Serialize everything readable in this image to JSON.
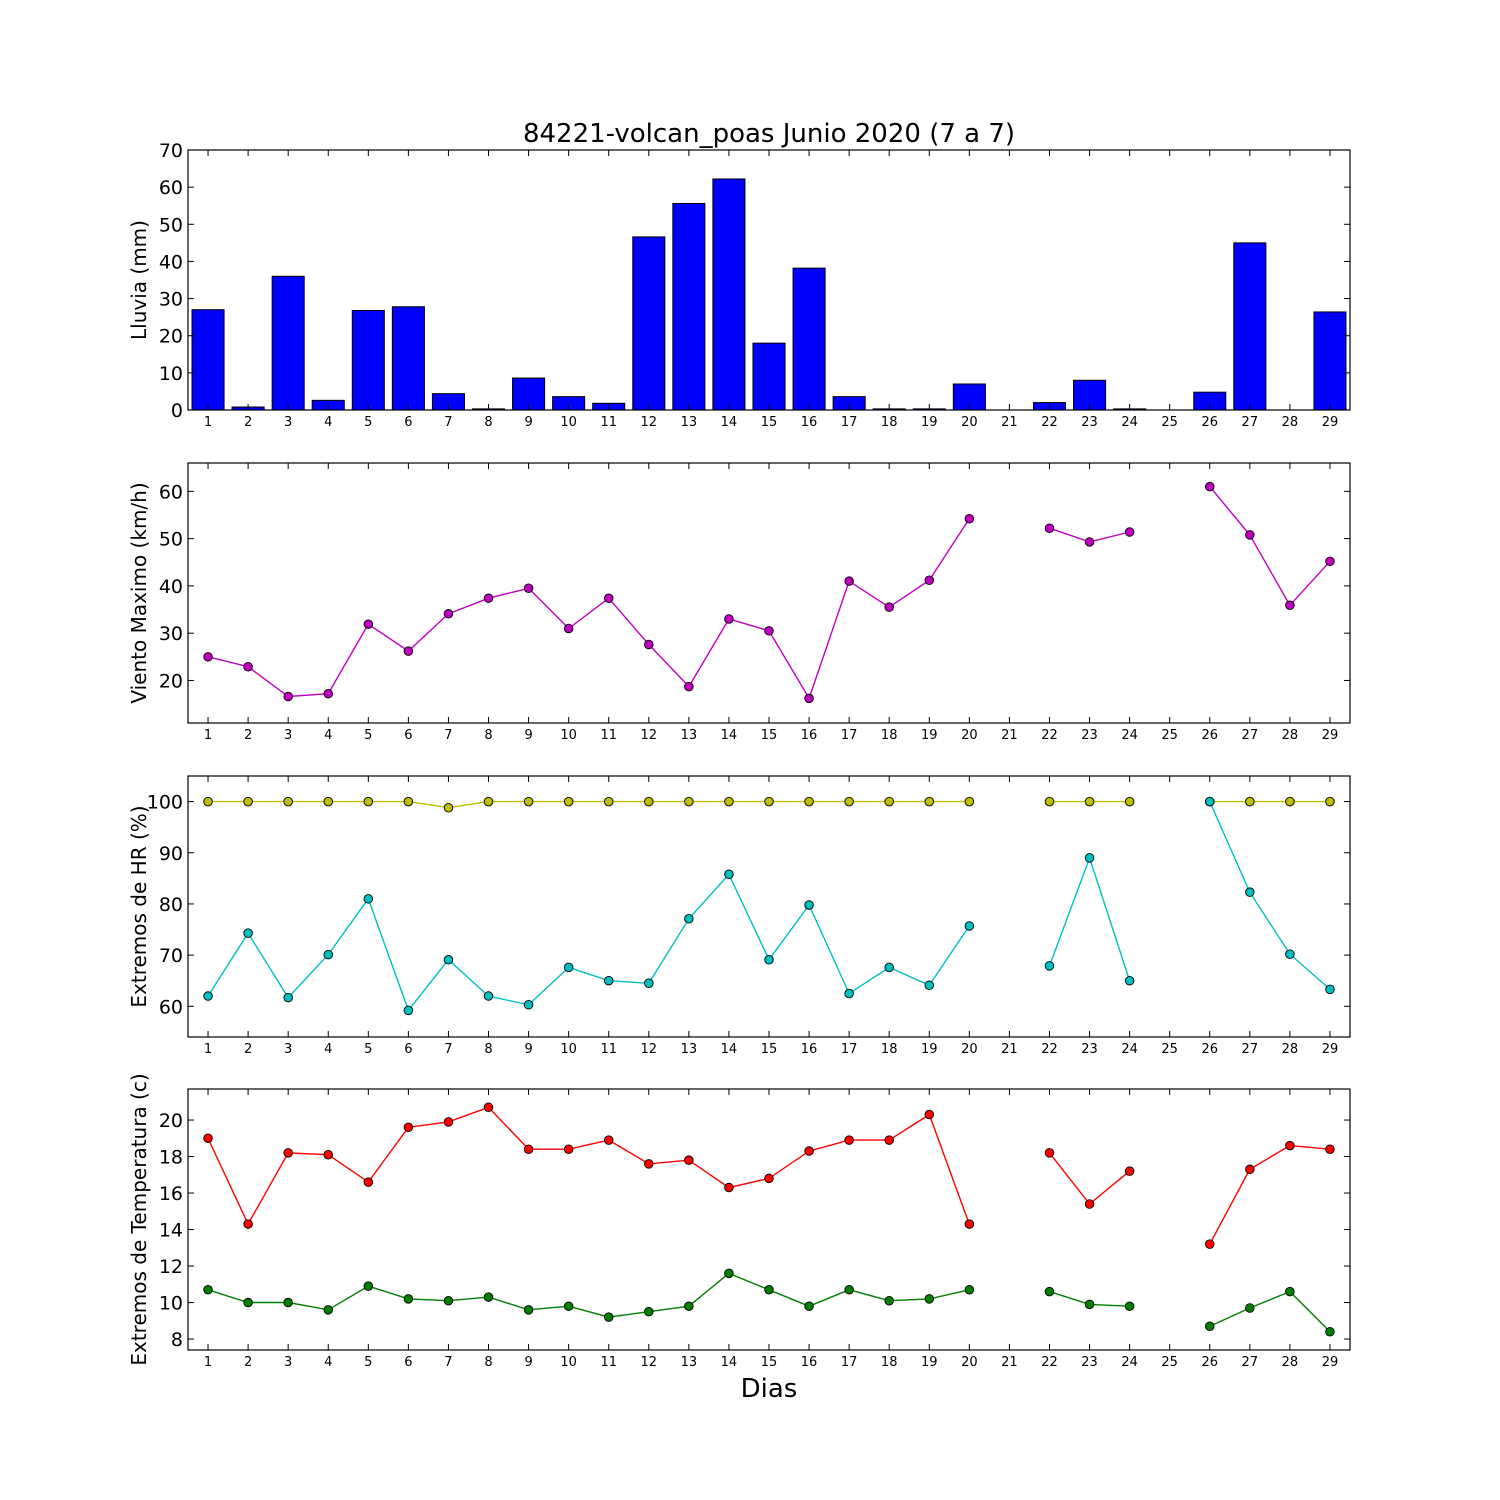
{
  "chart_data": [
    {
      "type": "bar",
      "title": "84221-volcan_poas Junio 2020  (7 a 7)",
      "ylabel": "Lluvia (mm)",
      "xlabel": "",
      "ylim": [
        0,
        70
      ],
      "yticks": [
        0,
        10,
        20,
        30,
        40,
        50,
        60,
        70
      ],
      "categories": [
        1,
        2,
        3,
        4,
        5,
        6,
        7,
        8,
        9,
        10,
        11,
        12,
        13,
        14,
        15,
        16,
        17,
        18,
        19,
        20,
        21,
        22,
        23,
        24,
        25,
        26,
        27,
        28,
        29
      ],
      "color": "#0000ff",
      "values": [
        27.0,
        0.8,
        36.0,
        2.6,
        26.8,
        27.8,
        4.4,
        0.3,
        8.6,
        3.6,
        1.8,
        46.6,
        55.6,
        62.2,
        18.0,
        38.2,
        3.6,
        0.3,
        0.3,
        7.0,
        0,
        2.0,
        8.0,
        0.3,
        0,
        4.8,
        45.0,
        0,
        26.4
      ]
    },
    {
      "type": "line",
      "ylabel": "Viento Maximo (km/h)",
      "ylim": [
        11,
        66
      ],
      "yticks": [
        20,
        30,
        40,
        50,
        60
      ],
      "x": [
        1,
        2,
        3,
        4,
        5,
        6,
        7,
        8,
        9,
        10,
        11,
        12,
        13,
        14,
        15,
        16,
        17,
        18,
        19,
        20,
        21,
        22,
        23,
        24,
        25,
        26,
        27,
        28,
        29
      ],
      "series": [
        {
          "color": "#bf00bf",
          "values": [
            25.0,
            22.9,
            16.6,
            17.2,
            31.9,
            26.2,
            34.1,
            37.4,
            39.5,
            31.0,
            37.4,
            27.6,
            18.7,
            33.0,
            30.5,
            16.2,
            41.0,
            35.5,
            41.2,
            54.2,
            null,
            52.2,
            49.3,
            51.4,
            null,
            61.0,
            50.8,
            35.9,
            45.2
          ]
        }
      ]
    },
    {
      "type": "line",
      "ylabel": "Extremos de HR (%)",
      "ylim": [
        54,
        105
      ],
      "yticks": [
        60,
        70,
        80,
        90,
        100
      ],
      "x": [
        1,
        2,
        3,
        4,
        5,
        6,
        7,
        8,
        9,
        10,
        11,
        12,
        13,
        14,
        15,
        16,
        17,
        18,
        19,
        20,
        21,
        22,
        23,
        24,
        25,
        26,
        27,
        28,
        29
      ],
      "series": [
        {
          "color": "#bfbf00",
          "values": [
            100,
            100,
            100,
            100,
            100,
            100,
            98.8,
            100,
            100,
            100,
            100,
            100,
            100,
            100,
            100,
            100,
            100,
            100,
            100,
            100,
            null,
            100,
            100,
            100,
            null,
            100,
            100,
            100,
            100
          ]
        },
        {
          "color": "#00bfbf",
          "values": [
            62.0,
            74.3,
            61.7,
            70.1,
            81.0,
            59.2,
            69.1,
            62.0,
            60.3,
            67.6,
            65.0,
            64.5,
            77.1,
            85.8,
            69.1,
            79.8,
            62.5,
            67.6,
            64.1,
            75.7,
            null,
            67.9,
            89.0,
            65.0,
            null,
            100,
            82.3,
            70.2,
            63.3
          ]
        }
      ]
    },
    {
      "type": "line",
      "ylabel": "Extremos de Temperatura (c)",
      "xlabel": "Dias",
      "ylim": [
        7.4,
        21.7
      ],
      "yticks": [
        8,
        10,
        12,
        14,
        16,
        18,
        20
      ],
      "x": [
        1,
        2,
        3,
        4,
        5,
        6,
        7,
        8,
        9,
        10,
        11,
        12,
        13,
        14,
        15,
        16,
        17,
        18,
        19,
        20,
        21,
        22,
        23,
        24,
        25,
        26,
        27,
        28,
        29
      ],
      "series": [
        {
          "color": "#ff0000",
          "values": [
            19.0,
            14.3,
            18.2,
            18.1,
            16.6,
            19.6,
            19.9,
            20.7,
            18.4,
            18.4,
            18.9,
            17.6,
            17.8,
            16.3,
            16.8,
            18.3,
            18.9,
            18.9,
            20.3,
            14.3,
            null,
            18.2,
            15.4,
            17.2,
            null,
            13.2,
            17.3,
            18.6,
            18.4
          ]
        },
        {
          "color": "#007f00",
          "values": [
            10.7,
            10.0,
            10.0,
            9.6,
            10.9,
            10.2,
            10.1,
            10.3,
            9.6,
            9.8,
            9.2,
            9.5,
            9.8,
            11.6,
            10.7,
            9.8,
            10.7,
            10.1,
            10.2,
            10.7,
            null,
            10.6,
            9.9,
            9.8,
            null,
            8.7,
            9.7,
            10.6,
            8.4
          ]
        }
      ]
    }
  ]
}
